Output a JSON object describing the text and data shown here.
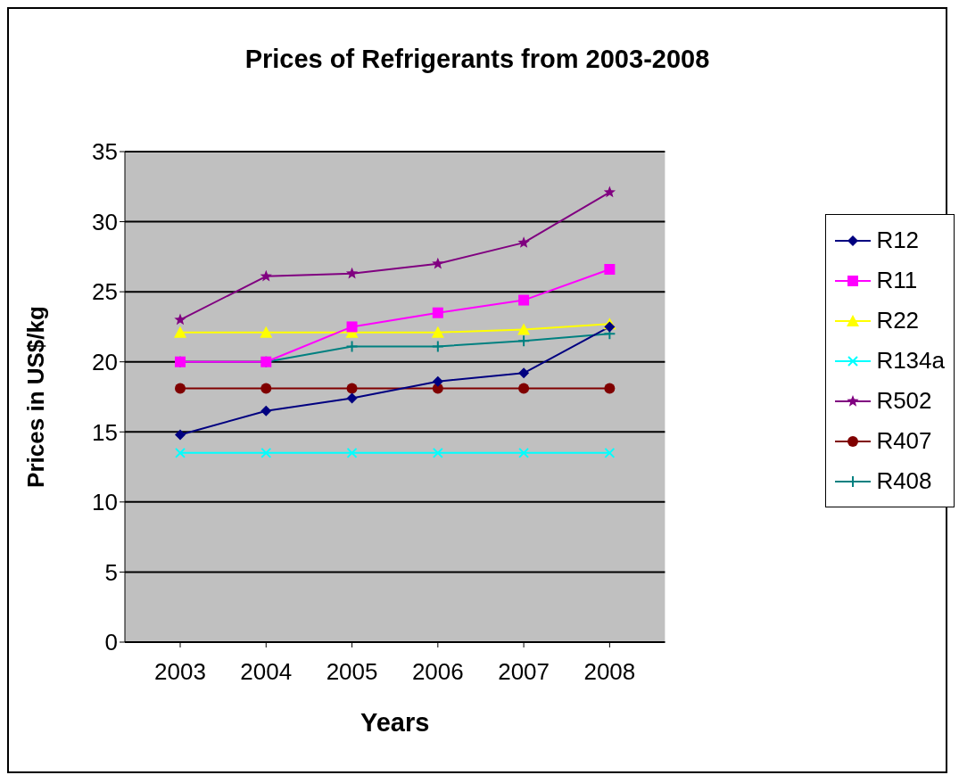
{
  "chart_data": {
    "type": "line",
    "title": "Prices of Refrigerants from 2003-2008",
    "xlabel": "Years",
    "ylabel": "Prices in US$/kg",
    "categories": [
      "2003",
      "2004",
      "2005",
      "2006",
      "2007",
      "2008"
    ],
    "ylim": [
      0,
      35
    ],
    "yticks": [
      0,
      5,
      10,
      15,
      20,
      25,
      30,
      35
    ],
    "grid": "y",
    "legend": "right",
    "series": [
      {
        "name": "R12",
        "color": "#000080",
        "marker": "diamond",
        "values": [
          14.8,
          16.5,
          17.4,
          18.6,
          19.2,
          22.5
        ]
      },
      {
        "name": "R11",
        "color": "#ff00ff",
        "marker": "square",
        "values": [
          20,
          20,
          22.5,
          23.5,
          24.4,
          26.6
        ]
      },
      {
        "name": "R22",
        "color": "#ffff00",
        "marker": "triangle",
        "values": [
          22.1,
          22.1,
          22.1,
          22.1,
          22.3,
          22.7
        ]
      },
      {
        "name": "R134a",
        "color": "#00ffff",
        "marker": "cross",
        "values": [
          13.5,
          13.5,
          13.5,
          13.5,
          13.5,
          13.5
        ]
      },
      {
        "name": "R502",
        "color": "#800080",
        "marker": "star",
        "values": [
          23,
          26.1,
          26.3,
          27,
          28.5,
          32.1
        ]
      },
      {
        "name": "R407",
        "color": "#800000",
        "marker": "circle",
        "values": [
          18.1,
          18.1,
          18.1,
          18.1,
          18.1,
          18.1
        ]
      },
      {
        "name": "R408",
        "color": "#008080",
        "marker": "plus",
        "values": [
          20,
          20,
          21.1,
          21.1,
          21.5,
          22
        ]
      }
    ]
  }
}
